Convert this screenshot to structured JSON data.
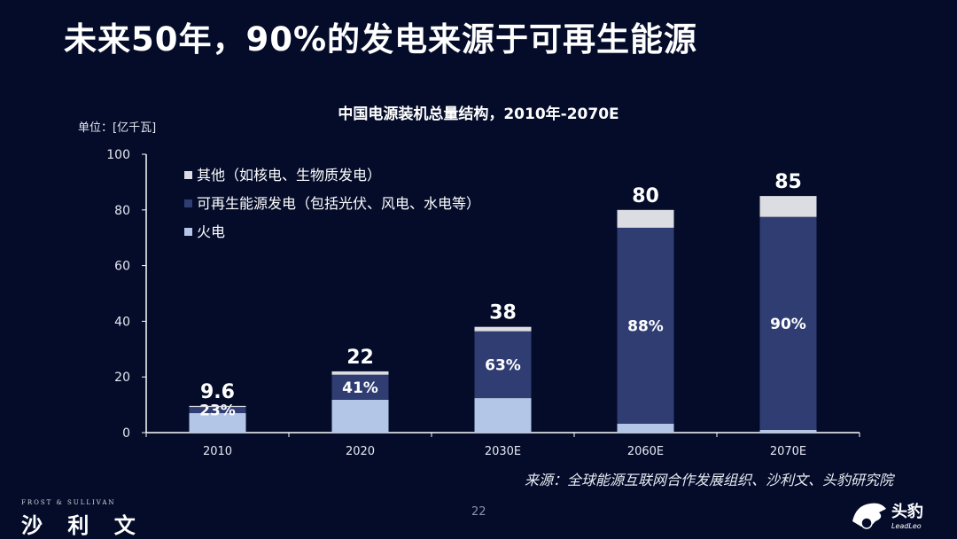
{
  "headline": "未来50年，90%的发电来源于可再生能源",
  "unit_label": "单位：[亿千瓦]",
  "source": "来源：全球能源互联网合作发展组织、沙利文、头豹研究院",
  "page_number": "22",
  "brand_left": {
    "en": "FROST & SULLIVAN",
    "cn": "沙 利 文"
  },
  "brand_right": {
    "cn": "头豹",
    "en": "LeadLeo"
  },
  "colors": {
    "fire": "#b4c6e7",
    "renewable": "#2f3d72",
    "other": "#dcdde2"
  },
  "chart_data": {
    "type": "bar",
    "stacked": true,
    "title": "中国电源装机总量结构，2010年-2070E",
    "ylabel": "单位：[亿千瓦]",
    "ylim": [
      0,
      100
    ],
    "yticks": [
      0,
      20,
      40,
      60,
      80,
      100
    ],
    "categories": [
      "2010",
      "2020",
      "2030E",
      "2060E",
      "2070E"
    ],
    "series": [
      {
        "name": "火电",
        "values": [
          7.0,
          11.8,
          12.4,
          3.2,
          1.0
        ]
      },
      {
        "name": "可再生能源发电（包括光伏、风电、水电等）",
        "values": [
          2.2,
          9.0,
          24.0,
          70.4,
          76.5
        ]
      },
      {
        "name": "其他（如核电、生物质发电）",
        "values": [
          0.4,
          1.2,
          1.6,
          6.4,
          7.5
        ]
      }
    ],
    "totals": [
      "9.6",
      "22",
      "38",
      "80",
      "85"
    ],
    "renewable_share_labels": [
      "23%",
      "41%",
      "63%",
      "88%",
      "90%"
    ],
    "legend": [
      "其他（如核电、生物质发电）",
      "可再生能源发电（包括光伏、风电、水电等）",
      "火电"
    ],
    "legend_position": "top-left"
  }
}
